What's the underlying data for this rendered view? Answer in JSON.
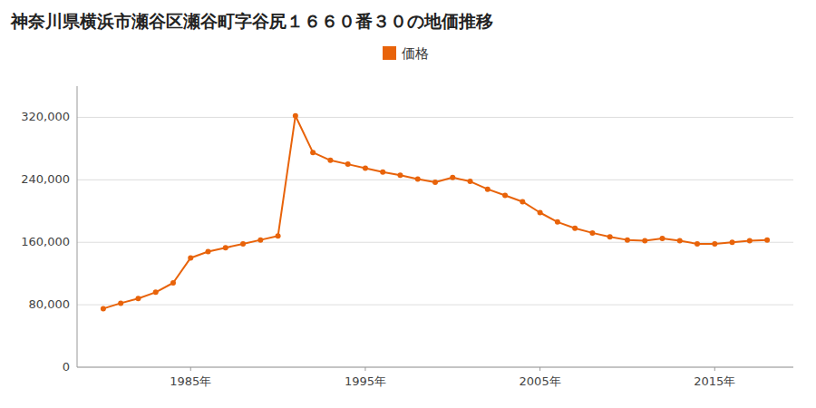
{
  "chart_data": {
    "type": "line",
    "title": "神奈川県横浜市瀬谷区瀬谷町字谷尻１６６０番３０の地価推移",
    "x": [
      1980,
      1981,
      1982,
      1983,
      1984,
      1985,
      1986,
      1987,
      1988,
      1989,
      1990,
      1991,
      1992,
      1993,
      1994,
      1995,
      1996,
      1997,
      1998,
      1999,
      2000,
      2001,
      2002,
      2003,
      2004,
      2005,
      2006,
      2007,
      2008,
      2009,
      2010,
      2011,
      2012,
      2013,
      2014,
      2015,
      2016,
      2017,
      2018
    ],
    "series": [
      {
        "name": "価格",
        "color": "#e8630a",
        "marker": "circle",
        "values": [
          75000,
          82000,
          88000,
          96000,
          108000,
          140000,
          148000,
          153000,
          158000,
          163000,
          168000,
          322000,
          275000,
          265000,
          260000,
          255000,
          250000,
          246000,
          241000,
          237000,
          243000,
          238000,
          228000,
          220000,
          212000,
          198000,
          186000,
          178000,
          172000,
          167000,
          163000,
          162000,
          165000,
          162000,
          158000,
          158000,
          160000,
          162000,
          163000
        ]
      }
    ],
    "xlim": [
      1978.5,
      2019.5
    ],
    "xticks": [
      {
        "value": 1985,
        "label": "1985年"
      },
      {
        "value": 1995,
        "label": "1995年"
      },
      {
        "value": 2005,
        "label": "2005年"
      },
      {
        "value": 2015,
        "label": "2015年"
      }
    ],
    "ylim": [
      0,
      360000
    ],
    "yticks": [
      0,
      {
        "value": 80000,
        "label": "80,000"
      },
      {
        "value": 160000,
        "label": "160,000"
      },
      {
        "value": 240000,
        "label": "240,000"
      },
      {
        "value": 320000,
        "label": "320,000"
      }
    ],
    "grid": "y",
    "legend": "top"
  }
}
